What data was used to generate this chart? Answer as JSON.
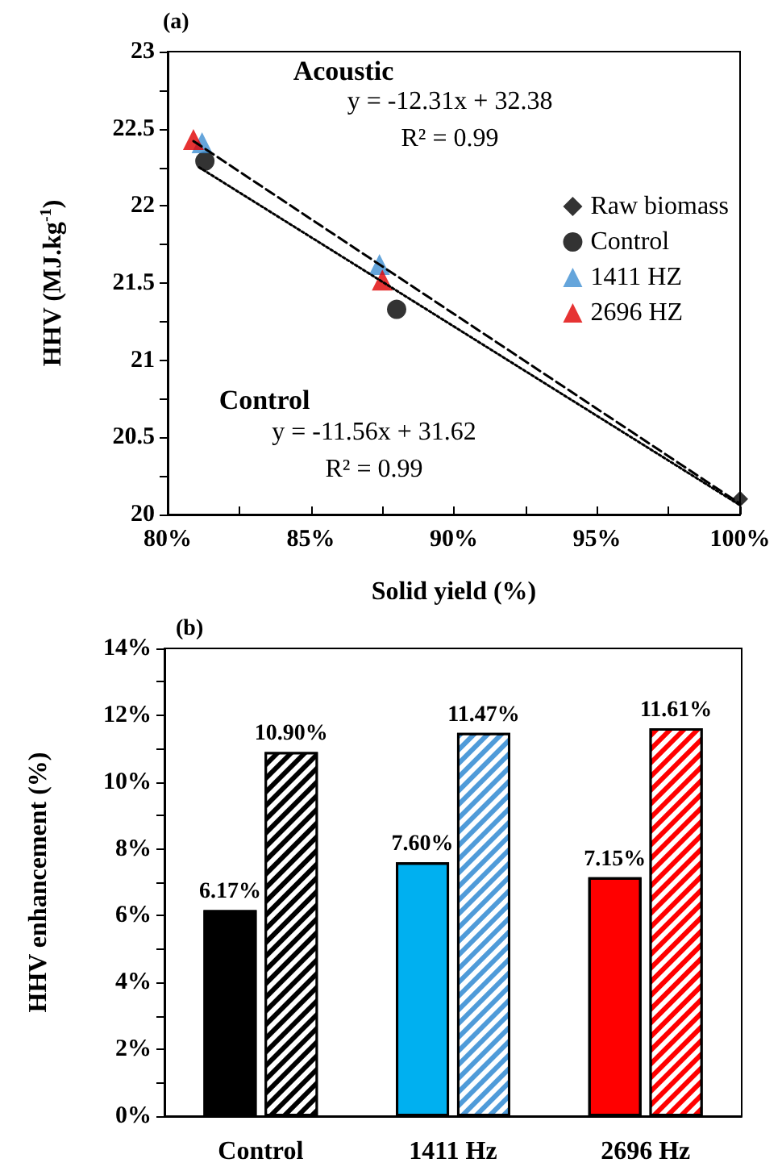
{
  "chart_data": [
    {
      "type": "scatter",
      "title": "(a)",
      "xlabel": "Solid yield (%)",
      "ylabel": "HHV (MJ.kg$^{-1}$)",
      "xlim": [
        80,
        100
      ],
      "xticks": [
        {
          "value": 80,
          "label": "80%"
        },
        {
          "value": 82.5,
          "label": null
        },
        {
          "value": 85,
          "label": "85%"
        },
        {
          "value": 87.5,
          "label": null
        },
        {
          "value": 90,
          "label": "90%"
        },
        {
          "value": 92.5,
          "label": null
        },
        {
          "value": 95,
          "label": "95%"
        },
        {
          "value": 97.5,
          "label": null
        },
        {
          "value": 100,
          "label": "100%"
        }
      ],
      "ylim": [
        20,
        23
      ],
      "yticks": [
        20,
        {
          "value": 20.25,
          "label": null
        },
        20.5,
        {
          "value": 20.75,
          "label": null
        },
        21,
        {
          "value": 21.25,
          "label": null
        },
        21.5,
        {
          "value": 21.75,
          "label": null
        },
        22,
        {
          "value": 22.25,
          "label": null
        },
        22.5,
        {
          "value": 22.75,
          "label": null
        },
        23
      ],
      "legend": "right",
      "annotations": [
        "Acoustic",
        "y = -12.31x + 32.38",
        "R² = 0.99",
        "Control",
        "y = -11.56x + 31.62",
        "R² = 0.99"
      ],
      "series": [
        {
          "name": "Raw biomass",
          "color": "#000000",
          "marker": "diamond",
          "x": [
            100
          ],
          "values": [
            20.1
          ]
        },
        {
          "name": "Control",
          "color": "#000000",
          "marker": "circle",
          "x": [
            81.3,
            88.0
          ],
          "values": [
            22.29,
            21.33
          ]
        },
        {
          "name": "1411 HZ",
          "color": "#3f8fd2",
          "marker": "triangle",
          "x": [
            81.2,
            87.4
          ],
          "values": [
            22.41,
            21.62
          ]
        },
        {
          "name": "2696 HZ",
          "color": "#e00000",
          "marker": "triangle",
          "x": [
            80.9,
            87.5
          ],
          "values": [
            22.43,
            21.52
          ]
        },
        {
          "type": "line",
          "color": "#000000",
          "line_style": "dashed",
          "marker": "none",
          "x": [
            80.9,
            100
          ],
          "values": [
            22.42,
            20.07
          ]
        },
        {
          "type": "line",
          "color": "#000000",
          "line_style": "dotted",
          "marker": "none",
          "x": [
            81.1,
            100
          ],
          "values": [
            22.25,
            20.06
          ]
        }
      ]
    },
    {
      "type": "bar",
      "title": "(b)",
      "ylabel": "HHV enhancement (%)",
      "categories": [
        "Control",
        "1411 Hz",
        "2696 Hz"
      ],
      "ylim": [
        0,
        14
      ],
      "yticks": [
        {
          "value": 0,
          "label": "0%"
        },
        {
          "value": 1,
          "label": null
        },
        {
          "value": 2,
          "label": "2%"
        },
        {
          "value": 3,
          "label": null
        },
        {
          "value": 4,
          "label": "4%"
        },
        {
          "value": 5,
          "label": null
        },
        {
          "value": 6,
          "label": "6%"
        },
        {
          "value": 7,
          "label": null
        },
        {
          "value": 8,
          "label": "8%"
        },
        {
          "value": 9,
          "label": null
        },
        {
          "value": 10,
          "label": "10%"
        },
        {
          "value": 11,
          "label": null
        },
        {
          "value": 12,
          "label": "12%"
        },
        {
          "value": 13,
          "label": null
        },
        {
          "value": 14,
          "label": "14%"
        }
      ],
      "series": [
        {
          "colors": [
            "#000000",
            "#00b0f0",
            "#ff0000"
          ],
          "values": [
            6.17,
            7.6,
            7.15
          ],
          "value_labels": [
            "6.17%",
            "7.60%",
            "7.15%"
          ]
        },
        {
          "colors": [
            "#000000",
            "#4f9bd9",
            "#ff0000"
          ],
          "values": [
            10.9,
            11.47,
            11.61
          ],
          "value_labels": [
            "10.90%",
            "11.47%",
            "11.61%"
          ]
        }
      ]
    }
  ]
}
